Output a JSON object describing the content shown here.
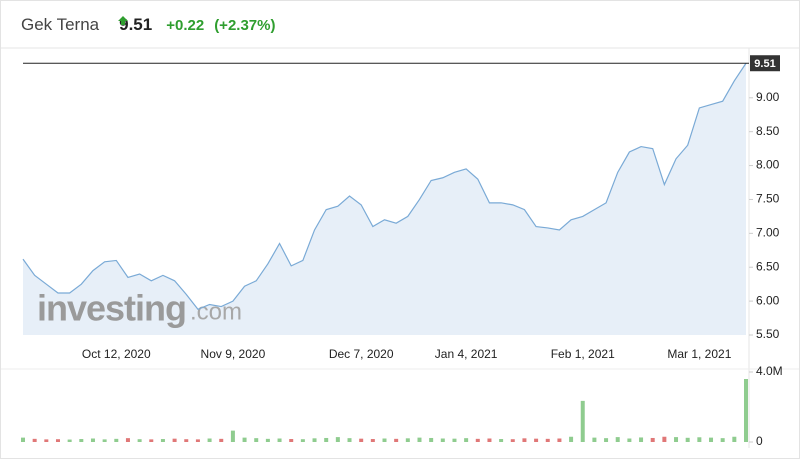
{
  "header": {
    "name": "Gek Terna",
    "price": "9.51",
    "change": "+0.22",
    "change_percent": "(+2.37%)"
  },
  "chart_data": [
    {
      "type": "area",
      "line_color": "#7aaad6",
      "fill_color": "#e7eff8",
      "watermark_brand": "investing",
      "watermark_suffix": ".com",
      "categories": [
        null,
        null,
        null,
        null,
        null,
        null,
        null,
        null,
        "Oct 12, 2020",
        null,
        null,
        null,
        null,
        null,
        null,
        null,
        null,
        null,
        "Nov 9, 2020",
        null,
        null,
        null,
        null,
        null,
        null,
        null,
        null,
        null,
        null,
        "Dec 7, 2020",
        null,
        null,
        null,
        null,
        null,
        null,
        null,
        null,
        "Jan 4, 2021",
        null,
        null,
        null,
        null,
        null,
        null,
        null,
        null,
        null,
        "Feb 1, 2021",
        null,
        null,
        null,
        null,
        null,
        null,
        null,
        null,
        null,
        "Mar 1, 2021",
        null,
        null,
        null,
        null
      ],
      "values": [
        6.62,
        6.38,
        6.25,
        6.12,
        6.12,
        6.25,
        6.45,
        6.58,
        6.6,
        6.35,
        6.4,
        6.3,
        6.38,
        6.3,
        6.1,
        5.88,
        5.95,
        5.92,
        6.0,
        6.22,
        6.3,
        6.55,
        6.85,
        6.52,
        6.6,
        7.05,
        7.35,
        7.4,
        7.55,
        7.42,
        7.1,
        7.2,
        7.15,
        7.25,
        7.5,
        7.78,
        7.82,
        7.9,
        7.95,
        7.8,
        7.45,
        7.45,
        7.42,
        7.35,
        7.1,
        7.08,
        7.05,
        7.2,
        7.25,
        7.35,
        7.45,
        7.9,
        8.2,
        8.28,
        8.25,
        7.72,
        8.1,
        8.3,
        8.85,
        8.9,
        8.95,
        9.25,
        9.51
      ],
      "ylim": [
        5.5,
        9.72
      ],
      "yticks": [
        {
          "value": 5.5,
          "label": "5.50"
        },
        {
          "value": 6,
          "label": "6.00"
        },
        {
          "value": 6.5,
          "label": "6.50"
        },
        {
          "value": 7,
          "label": "7.00"
        },
        {
          "value": 7.5,
          "label": "7.50"
        },
        {
          "value": 8,
          "label": "8.00"
        },
        {
          "value": 8.5,
          "label": "8.50"
        },
        {
          "value": 9,
          "label": "9.00"
        }
      ],
      "last_price_line": true
    },
    {
      "type": "volume",
      "up_color": "#8fcc8f",
      "down_color": "#e07777",
      "values": [
        250000,
        180000,
        150000,
        160000,
        140000,
        170000,
        200000,
        150000,
        180000,
        220000,
        160000,
        150000,
        170000,
        190000,
        160000,
        150000,
        200000,
        180000,
        650000,
        250000,
        220000,
        180000,
        200000,
        170000,
        160000,
        210000,
        230000,
        280000,
        220000,
        190000,
        170000,
        200000,
        180000,
        210000,
        250000,
        230000,
        200000,
        190000,
        220000,
        180000,
        200000,
        170000,
        160000,
        210000,
        190000,
        180000,
        200000,
        300000,
        2350000,
        250000,
        220000,
        280000,
        200000,
        260000,
        230000,
        300000,
        280000,
        240000,
        270000,
        250000,
        220000,
        300000,
        3600000
      ],
      "ylim": [
        0,
        4000000
      ],
      "yticks": [
        {
          "value": 4000000,
          "label": "4.0M"
        },
        0
      ]
    }
  ]
}
